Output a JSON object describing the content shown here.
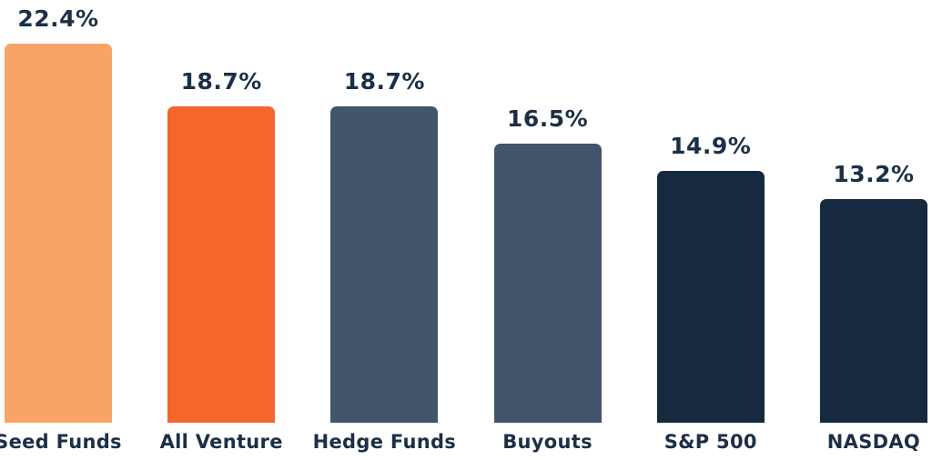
{
  "chart_data": {
    "type": "bar",
    "title": "",
    "xlabel": "",
    "ylabel": "",
    "categories": [
      "Seed Funds",
      "All Venture",
      "Hedge Funds",
      "Buyouts",
      "S&P 500",
      "NASDAQ"
    ],
    "values": [
      22.4,
      18.7,
      18.7,
      16.5,
      14.9,
      13.2
    ],
    "value_labels": [
      "22.4%",
      "18.7%",
      "18.7%",
      "16.5%",
      "14.9%",
      "13.2%"
    ],
    "bar_colors": [
      "#F9A366",
      "#F4662B",
      "#43556B",
      "#43556B",
      "#16293E",
      "#16293E"
    ],
    "text_color": "#1B2F47",
    "ylim": [
      0,
      22.4
    ],
    "grid": false,
    "legend": false,
    "axes_visible": false,
    "value_label_position": "above-bar",
    "category_label_position": "below-bar"
  }
}
